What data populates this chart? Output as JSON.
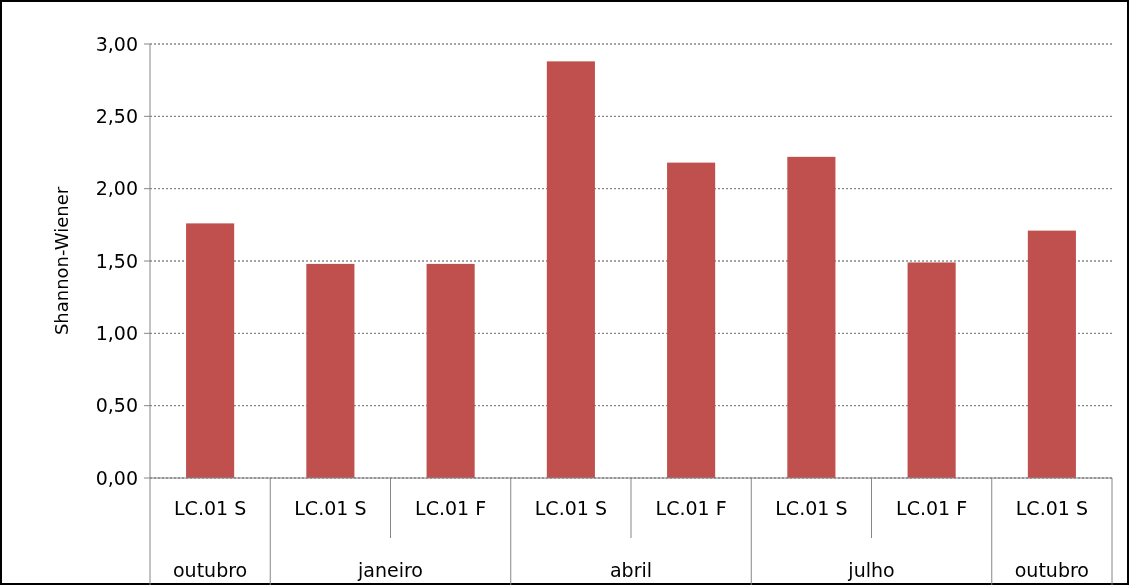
{
  "chart_data": {
    "type": "bar",
    "ylabel": "Shannon-Wiener",
    "categories": [
      "LC.01 S",
      "LC.01 S",
      "LC.01 F",
      "LC.01 S",
      "LC.01 F",
      "LC.01 S",
      "LC.01 F",
      "LC.01 S"
    ],
    "values": [
      1.76,
      1.48,
      1.48,
      2.88,
      2.18,
      2.22,
      1.49,
      1.71
    ],
    "color": "#c0504d",
    "ylim": [
      0,
      3
    ],
    "yticks": [
      {
        "value": 0,
        "label": "0,00"
      },
      {
        "value": 0.5,
        "label": "0,50"
      },
      {
        "value": 1,
        "label": "1,00"
      },
      {
        "value": 1.5,
        "label": "1,50"
      },
      {
        "value": 2,
        "label": "2,00"
      },
      {
        "value": 2.5,
        "label": "2,50"
      },
      {
        "value": 3,
        "label": "3,00"
      }
    ],
    "grid": "y",
    "annotations": [
      "outubro",
      "janeiro",
      "abril",
      "julho",
      "outubro"
    ]
  }
}
